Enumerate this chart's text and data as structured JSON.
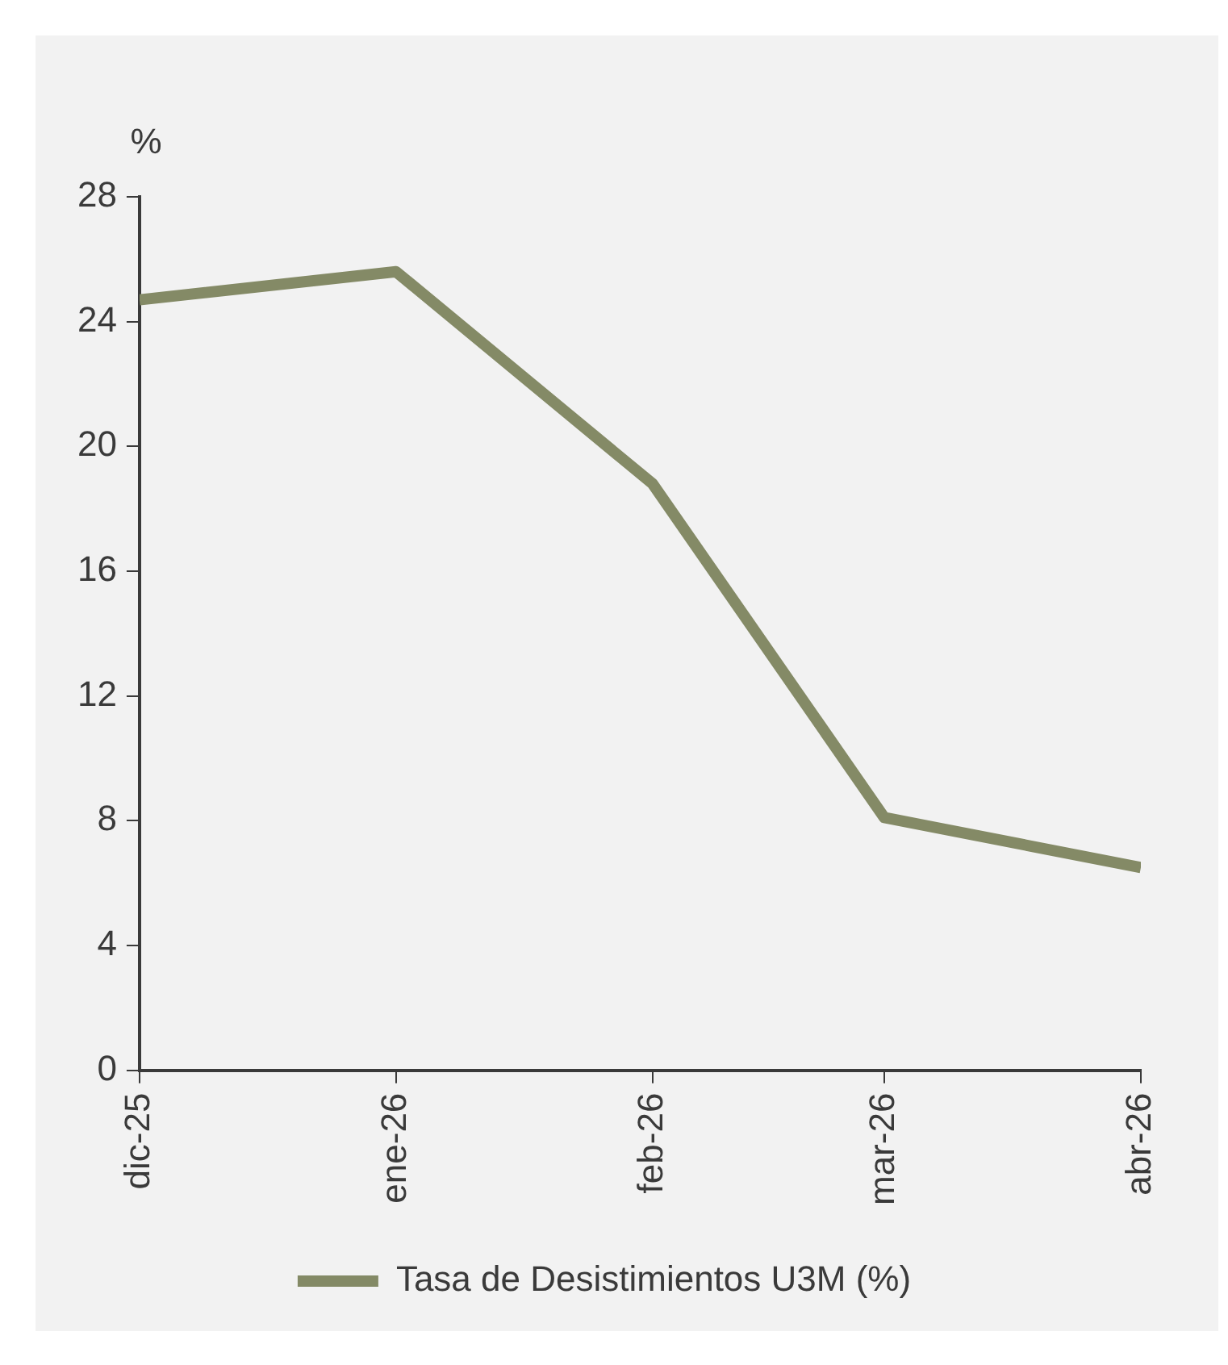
{
  "chart_data": {
    "type": "line",
    "ylabel": "%",
    "x": [
      "2025-12",
      "2026-01",
      "2026-02",
      "2026-03",
      "2026-04"
    ],
    "xlim": [
      "2025-12",
      "2026-04"
    ],
    "xticks": [
      {
        "value": "2025-12",
        "label": "dic-25"
      },
      {
        "value": "2026-01",
        "label": "ene-26"
      },
      {
        "value": "2026-02",
        "label": "feb-26"
      },
      {
        "value": "2026-03",
        "label": "mar-26"
      },
      {
        "value": "2026-04",
        "label": "abr-26"
      }
    ],
    "series": [
      {
        "name": "Tasa de Desistimientos U3M (%)",
        "color": "#848a66",
        "values": [
          24.7,
          25.6,
          18.8,
          8.1,
          6.5
        ]
      }
    ],
    "ylim": [
      0,
      28
    ],
    "yticks": [
      0,
      4,
      8,
      12,
      16,
      20,
      24,
      28
    ],
    "grid": false,
    "legend": "bottom",
    "marker": "none",
    "line_style": "solid"
  }
}
